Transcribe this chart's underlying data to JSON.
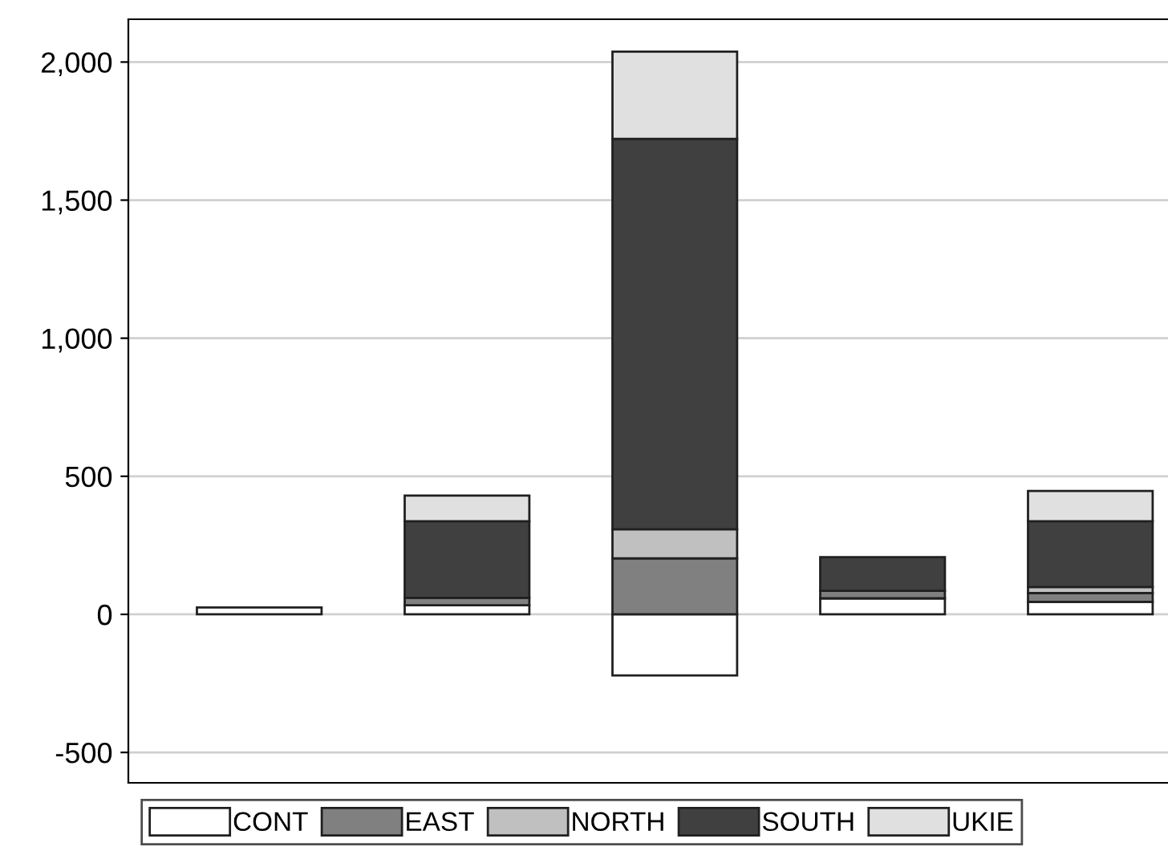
{
  "chart_data": {
    "type": "bar",
    "stacked": true,
    "categories": [
      null,
      null,
      null,
      null,
      null
    ],
    "series": [
      {
        "name": "CONT",
        "color": "#ffffff",
        "values": [
          25,
          33,
          -221,
          58,
          45
        ]
      },
      {
        "name": "EAST",
        "color": "#808080",
        "values": [
          null,
          27,
          203,
          27,
          32
        ]
      },
      {
        "name": "NORTH",
        "color": "#c0c0c0",
        "values": [
          null,
          null,
          105,
          null,
          22
        ]
      },
      {
        "name": "SOUTH",
        "color": "#404040",
        "values": [
          null,
          277,
          1414,
          122,
          238
        ]
      },
      {
        "name": "UKIE",
        "color": "#e0e0e0",
        "values": [
          null,
          93,
          316,
          null,
          110
        ]
      }
    ],
    "ylim": [
      -610,
      2155
    ],
    "yticks": [
      {
        "value": -500,
        "label": "-500"
      },
      0,
      500,
      {
        "value": 1000,
        "label": "1,000"
      },
      {
        "value": 1500,
        "label": "1,500"
      },
      {
        "value": 2000,
        "label": "2,000"
      }
    ],
    "grid": "y",
    "legend": "bottom"
  }
}
